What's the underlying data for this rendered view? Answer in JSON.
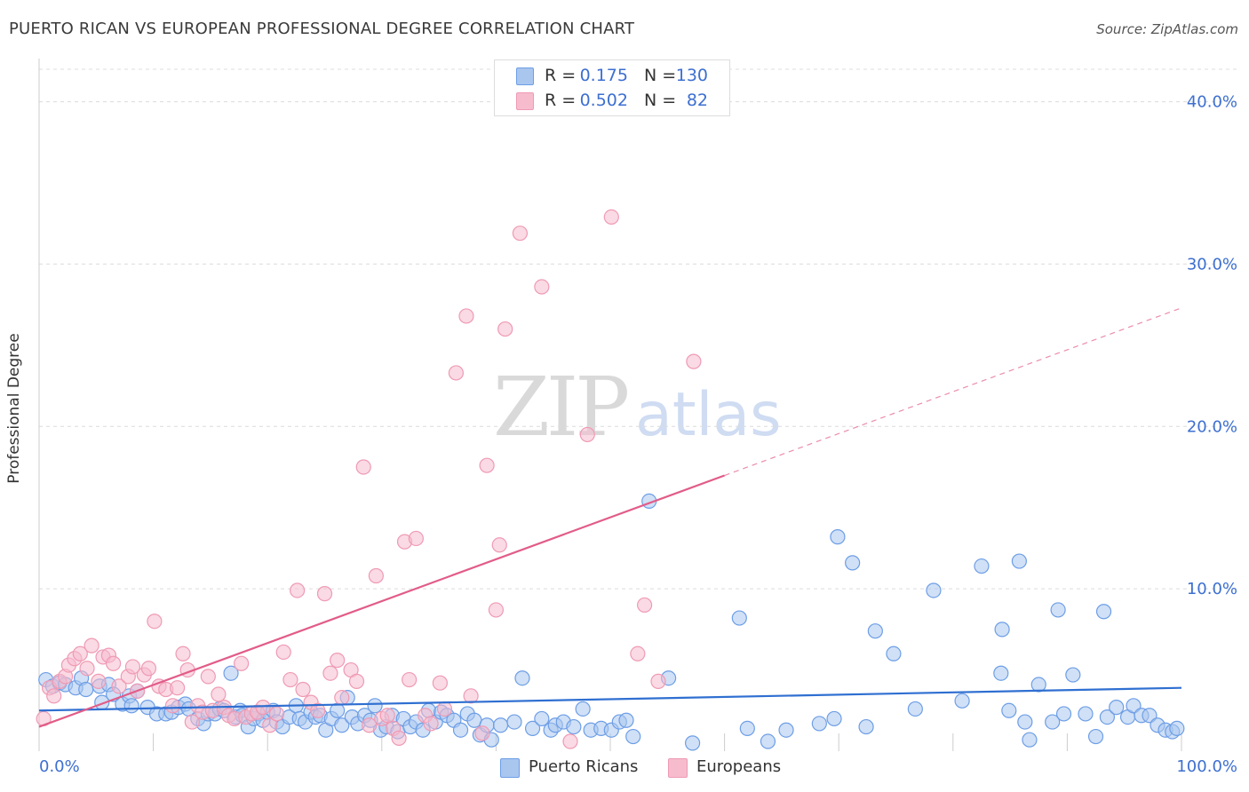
{
  "header": {
    "title": "PUERTO RICAN VS EUROPEAN PROFESSIONAL DEGREE CORRELATION CHART",
    "source": "Source: ZipAtlas.com"
  },
  "watermark": {
    "zip": "ZIP",
    "atlas": "atlas"
  },
  "legend_top": {
    "rows": [
      {
        "r_label": "R =",
        "r_value": "0.175",
        "n_label": "N =",
        "n_value": "130"
      },
      {
        "r_label": "R =",
        "r_value": "0.502",
        "n_label": "N =",
        "n_value": "82"
      }
    ]
  },
  "legend_bottom": {
    "items": [
      "Puerto Ricans",
      "Europeans"
    ]
  },
  "colors": {
    "blue_fill": "#a9c6ef",
    "blue_stroke": "#6d9ee6",
    "blue_line": "#2f6fd1",
    "pink_fill": "#f6bccd",
    "pink_stroke": "#ef9ab4",
    "pink_line": "#e25c88",
    "tick_text": "#3d6fd0",
    "grid": "#dcdcdc"
  },
  "chart_data": {
    "type": "scatter",
    "title": "PUERTO RICAN VS EUROPEAN PROFESSIONAL DEGREE CORRELATION CHART",
    "xlabel": "",
    "ylabel": "Professional Degree",
    "xlim": [
      0,
      100
    ],
    "ylim": [
      0,
      42
    ],
    "x_tick_labels": [
      "0.0%",
      "100.0%"
    ],
    "y_ticks": [
      10,
      20,
      30,
      40
    ],
    "y_tick_labels": [
      "10.0%",
      "20.0%",
      "30.0%",
      "40.0%"
    ],
    "grid": true,
    "legend_position": "top-center",
    "series": [
      {
        "name": "Puerto Ricans",
        "color": "#6d9ee6",
        "R": 0.175,
        "N": 130,
        "trend": {
          "x": [
            0,
            100
          ],
          "y": [
            2.5,
            3.9
          ],
          "dashed_from": null
        },
        "points": [
          [
            0.6,
            4.4
          ],
          [
            1.2,
            4.0
          ],
          [
            1.8,
            4.2
          ],
          [
            2.3,
            4.1
          ],
          [
            3.2,
            3.9
          ],
          [
            3.7,
            4.5
          ],
          [
            4.1,
            3.8
          ],
          [
            5.3,
            4.0
          ],
          [
            5.5,
            3.0
          ],
          [
            6.1,
            4.1
          ],
          [
            6.5,
            3.5
          ],
          [
            7.3,
            2.9
          ],
          [
            7.9,
            3.4
          ],
          [
            8.1,
            2.8
          ],
          [
            8.6,
            3.7
          ],
          [
            9.5,
            2.7
          ],
          [
            10.3,
            2.3
          ],
          [
            11.1,
            2.3
          ],
          [
            11.6,
            2.4
          ],
          [
            12.2,
            2.7
          ],
          [
            12.8,
            2.9
          ],
          [
            13.1,
            2.6
          ],
          [
            13.9,
            2.0
          ],
          [
            14.4,
            1.7
          ],
          [
            14.8,
            2.3
          ],
          [
            15.4,
            2.3
          ],
          [
            15.8,
            2.6
          ],
          [
            16.2,
            2.5
          ],
          [
            16.8,
            4.8
          ],
          [
            17.2,
            2.1
          ],
          [
            17.6,
            2.5
          ],
          [
            17.8,
            2.2
          ],
          [
            18.3,
            1.5
          ],
          [
            18.8,
            2.0
          ],
          [
            19.2,
            2.3
          ],
          [
            19.6,
            1.9
          ],
          [
            20.0,
            2.4
          ],
          [
            20.5,
            2.5
          ],
          [
            20.8,
            1.8
          ],
          [
            21.3,
            1.5
          ],
          [
            21.9,
            2.1
          ],
          [
            22.5,
            2.8
          ],
          [
            22.8,
            2.0
          ],
          [
            23.3,
            1.8
          ],
          [
            23.8,
            2.4
          ],
          [
            24.2,
            2.1
          ],
          [
            24.6,
            2.2
          ],
          [
            25.1,
            1.3
          ],
          [
            25.6,
            2.0
          ],
          [
            26.1,
            2.5
          ],
          [
            26.5,
            1.6
          ],
          [
            27.0,
            3.3
          ],
          [
            27.4,
            2.1
          ],
          [
            27.9,
            1.7
          ],
          [
            28.5,
            2.2
          ],
          [
            29.0,
            1.9
          ],
          [
            29.4,
            2.8
          ],
          [
            29.9,
            1.3
          ],
          [
            30.4,
            1.5
          ],
          [
            30.9,
            2.2
          ],
          [
            31.4,
            1.2
          ],
          [
            31.9,
            2.0
          ],
          [
            32.5,
            1.5
          ],
          [
            33.0,
            1.8
          ],
          [
            33.6,
            1.3
          ],
          [
            34.1,
            2.5
          ],
          [
            34.7,
            1.8
          ],
          [
            35.2,
            2.4
          ],
          [
            35.7,
            2.2
          ],
          [
            36.3,
            1.9
          ],
          [
            36.9,
            1.3
          ],
          [
            37.5,
            2.3
          ],
          [
            38.1,
            1.9
          ],
          [
            38.6,
            1.0
          ],
          [
            39.2,
            1.6
          ],
          [
            39.6,
            0.7
          ],
          [
            40.4,
            1.6
          ],
          [
            41.6,
            1.8
          ],
          [
            42.3,
            4.5
          ],
          [
            43.2,
            1.4
          ],
          [
            44.0,
            2.0
          ],
          [
            44.8,
            1.3
          ],
          [
            45.2,
            1.6
          ],
          [
            45.9,
            1.8
          ],
          [
            46.8,
            1.5
          ],
          [
            47.6,
            2.6
          ],
          [
            48.3,
            1.3
          ],
          [
            49.2,
            1.4
          ],
          [
            50.1,
            1.3
          ],
          [
            50.8,
            1.8
          ],
          [
            51.4,
            1.9
          ],
          [
            52.0,
            0.9
          ],
          [
            53.4,
            15.4
          ],
          [
            55.1,
            4.5
          ],
          [
            57.2,
            0.5
          ],
          [
            61.3,
            8.2
          ],
          [
            62.0,
            1.4
          ],
          [
            63.8,
            0.6
          ],
          [
            65.4,
            1.3
          ],
          [
            68.3,
            1.7
          ],
          [
            69.6,
            2.0
          ],
          [
            69.9,
            13.2
          ],
          [
            71.2,
            11.6
          ],
          [
            72.4,
            1.5
          ],
          [
            73.2,
            7.4
          ],
          [
            74.8,
            6.0
          ],
          [
            76.7,
            2.6
          ],
          [
            78.3,
            9.9
          ],
          [
            80.8,
            3.1
          ],
          [
            82.5,
            11.4
          ],
          [
            84.2,
            4.8
          ],
          [
            84.3,
            7.5
          ],
          [
            84.9,
            2.5
          ],
          [
            85.8,
            11.7
          ],
          [
            86.3,
            1.8
          ],
          [
            86.7,
            0.7
          ],
          [
            87.5,
            4.1
          ],
          [
            88.7,
            1.8
          ],
          [
            89.2,
            8.7
          ],
          [
            89.7,
            2.3
          ],
          [
            90.5,
            4.7
          ],
          [
            91.6,
            2.3
          ],
          [
            92.5,
            0.9
          ],
          [
            93.2,
            8.6
          ],
          [
            93.5,
            2.1
          ],
          [
            94.3,
            2.7
          ],
          [
            95.3,
            2.1
          ],
          [
            95.8,
            2.8
          ],
          [
            96.5,
            2.2
          ],
          [
            97.2,
            2.2
          ],
          [
            97.9,
            1.6
          ],
          [
            98.6,
            1.3
          ],
          [
            99.2,
            1.2
          ],
          [
            99.6,
            1.4
          ]
        ]
      },
      {
        "name": "Europeans",
        "color": "#ef9ab4",
        "R": 0.502,
        "N": 82,
        "trend": {
          "x": [
            0,
            100
          ],
          "y": [
            1.5,
            27.3
          ],
          "dashed_from": 60
        },
        "points": [
          [
            0.4,
            2.0
          ],
          [
            0.9,
            3.9
          ],
          [
            1.3,
            3.4
          ],
          [
            1.8,
            4.3
          ],
          [
            2.3,
            4.6
          ],
          [
            2.6,
            5.3
          ],
          [
            3.1,
            5.7
          ],
          [
            3.6,
            6.0
          ],
          [
            4.2,
            5.1
          ],
          [
            4.6,
            6.5
          ],
          [
            5.2,
            4.3
          ],
          [
            5.6,
            5.8
          ],
          [
            6.1,
            5.9
          ],
          [
            6.5,
            5.4
          ],
          [
            7.0,
            4.0
          ],
          [
            7.8,
            4.6
          ],
          [
            8.2,
            5.2
          ],
          [
            8.6,
            3.7
          ],
          [
            9.2,
            4.7
          ],
          [
            9.6,
            5.1
          ],
          [
            10.1,
            8.0
          ],
          [
            10.5,
            4.0
          ],
          [
            11.1,
            3.8
          ],
          [
            11.7,
            2.8
          ],
          [
            12.1,
            3.9
          ],
          [
            12.6,
            6.0
          ],
          [
            13.0,
            5.0
          ],
          [
            13.4,
            1.8
          ],
          [
            13.9,
            2.8
          ],
          [
            14.3,
            2.4
          ],
          [
            14.8,
            4.6
          ],
          [
            15.2,
            2.5
          ],
          [
            15.7,
            3.5
          ],
          [
            16.2,
            2.7
          ],
          [
            16.6,
            2.2
          ],
          [
            17.1,
            2.0
          ],
          [
            17.7,
            5.4
          ],
          [
            18.1,
            2.1
          ],
          [
            18.6,
            2.3
          ],
          [
            19.1,
            2.4
          ],
          [
            19.6,
            2.7
          ],
          [
            20.2,
            1.6
          ],
          [
            20.8,
            2.3
          ],
          [
            21.4,
            6.1
          ],
          [
            22.0,
            4.4
          ],
          [
            22.6,
            9.9
          ],
          [
            23.1,
            3.8
          ],
          [
            23.8,
            3.0
          ],
          [
            24.4,
            2.5
          ],
          [
            25.0,
            9.7
          ],
          [
            25.5,
            4.8
          ],
          [
            26.1,
            5.6
          ],
          [
            26.5,
            3.3
          ],
          [
            27.3,
            5.0
          ],
          [
            27.8,
            4.3
          ],
          [
            28.4,
            17.5
          ],
          [
            28.9,
            1.6
          ],
          [
            29.5,
            10.8
          ],
          [
            30.0,
            2.0
          ],
          [
            30.5,
            2.2
          ],
          [
            31.0,
            1.4
          ],
          [
            31.5,
            0.8
          ],
          [
            32.0,
            12.9
          ],
          [
            32.4,
            4.4
          ],
          [
            33.0,
            13.1
          ],
          [
            33.8,
            2.2
          ],
          [
            34.3,
            1.7
          ],
          [
            35.1,
            4.2
          ],
          [
            35.5,
            2.6
          ],
          [
            36.5,
            23.3
          ],
          [
            37.4,
            26.8
          ],
          [
            37.8,
            3.4
          ],
          [
            38.8,
            1.1
          ],
          [
            39.2,
            17.6
          ],
          [
            40.0,
            8.7
          ],
          [
            40.3,
            12.7
          ],
          [
            40.8,
            26.0
          ],
          [
            42.1,
            31.9
          ],
          [
            44.0,
            28.6
          ],
          [
            48.0,
            19.5
          ],
          [
            50.1,
            32.9
          ],
          [
            52.4,
            6.0
          ],
          [
            53.0,
            9.0
          ],
          [
            54.2,
            4.3
          ],
          [
            57.3,
            24.0
          ],
          [
            46.5,
            0.6
          ]
        ]
      }
    ]
  }
}
